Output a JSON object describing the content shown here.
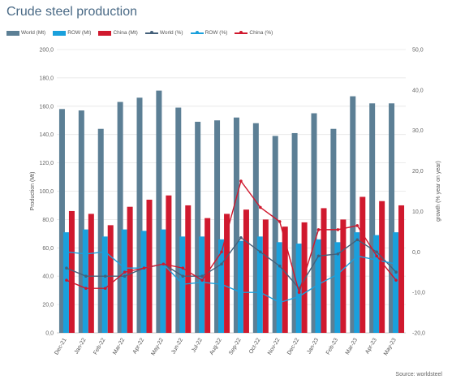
{
  "title": "Crude steel production",
  "source": "Source: worldsteel",
  "chart_data": {
    "type": "bar",
    "categories": [
      "Dec-21",
      "Jan-22",
      "Feb-22",
      "Mar-22",
      "Apr-22",
      "May-22",
      "Jun-22",
      "Jul-22",
      "Aug-22",
      "Sep-22",
      "Oct-22",
      "Nov-22",
      "Dec-22",
      "Jan-23",
      "Feb-23",
      "Mar-23",
      "Apr-23",
      "May-23"
    ],
    "ylabel": "Production (Mt)",
    "ylim": [
      0,
      200
    ],
    "yticks": [
      "0,0",
      "20,0",
      "40,0",
      "60,0",
      "80,0",
      "100,0",
      "120,0",
      "140,0",
      "160,0",
      "180,0",
      "200,0"
    ],
    "y2label": "growth (% year on year)",
    "y2lim": [
      -20,
      50
    ],
    "y2ticks": [
      "-20,0",
      "-10,0",
      "0,0",
      "10,0",
      "20,0",
      "30,0",
      "40,0",
      "50,0"
    ],
    "grid": true,
    "legend_position": "top-left",
    "series": [
      {
        "name": "World (Mt)",
        "kind": "bar",
        "axis": "left",
        "color": "#5c7f95",
        "values": [
          158,
          157,
          144,
          163,
          166,
          171,
          159,
          149,
          150,
          152,
          148,
          139,
          141,
          155,
          144,
          167,
          162,
          162
        ]
      },
      {
        "name": "ROW (Mt)",
        "kind": "bar",
        "axis": "left",
        "color": "#1aa0dc",
        "values": [
          71,
          73,
          68,
          73,
          72,
          73,
          68,
          68,
          66,
          65,
          68,
          64,
          63,
          66,
          64,
          71,
          69,
          71
        ]
      },
      {
        "name": "China (Mt)",
        "kind": "bar",
        "axis": "left",
        "color": "#d0192e",
        "values": [
          86,
          84,
          76,
          89,
          94,
          97,
          90,
          81,
          84,
          87,
          80,
          75,
          78,
          88,
          80,
          96,
          93,
          90
        ]
      },
      {
        "name": "World (%)",
        "kind": "line",
        "axis": "right",
        "color": "#44607a",
        "values": [
          -4,
          -6,
          -6,
          -6,
          -4,
          -3,
          -6,
          -6,
          -3,
          3.5,
          0,
          -3.5,
          -9,
          -1,
          -0.5,
          3,
          0,
          -5
        ]
      },
      {
        "name": "ROW (%)",
        "kind": "line",
        "axis": "right",
        "color": "#1aa0dc",
        "values": [
          0,
          -0.5,
          0,
          -4,
          -4,
          -3,
          -8,
          -7.5,
          -8,
          -10,
          -10,
          -12.5,
          -11,
          -8,
          -5.5,
          -1,
          -2,
          -3
        ]
      },
      {
        "name": "China (%)",
        "kind": "line",
        "axis": "right",
        "color": "#d0192e",
        "values": [
          -7,
          -9,
          -9,
          -5,
          -4,
          -3,
          -4,
          -7,
          0,
          17.5,
          11,
          7.5,
          -10,
          5.5,
          5.5,
          6.5,
          -1,
          -7
        ]
      }
    ]
  }
}
